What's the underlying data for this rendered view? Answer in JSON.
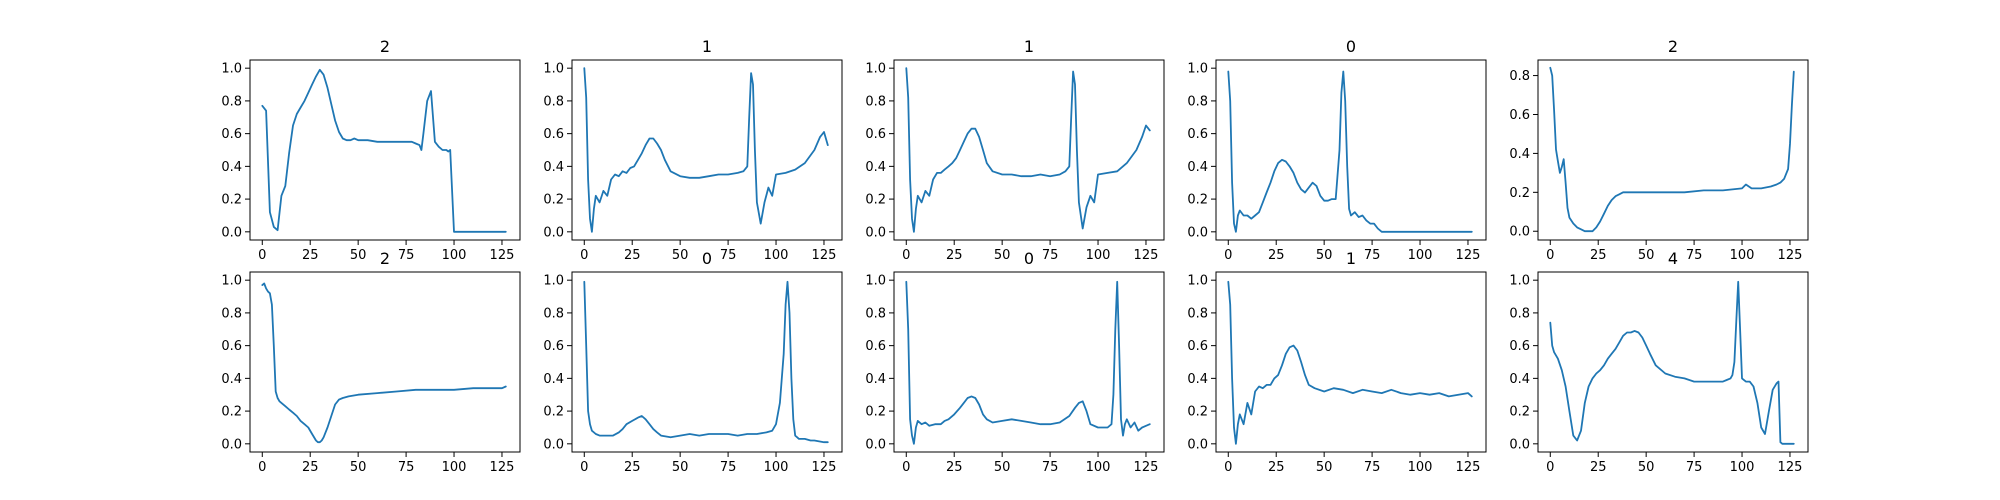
{
  "colors": {
    "series": "#1f77b4",
    "axes": "#000000",
    "background": "#ffffff"
  },
  "chart_data": [
    {
      "type": "line",
      "title": "2",
      "xlim": [
        -6.4,
        134.4
      ],
      "ylim": [
        -0.05,
        1.05
      ],
      "xticks": [
        0,
        25,
        50,
        75,
        100,
        125
      ],
      "yticks": [
        0.0,
        0.2,
        0.4,
        0.6,
        0.8,
        1.0
      ],
      "x": [
        0,
        2,
        4,
        6,
        8,
        10,
        12,
        14,
        16,
        18,
        20,
        22,
        24,
        26,
        28,
        30,
        32,
        34,
        36,
        38,
        40,
        42,
        44,
        46,
        48,
        50,
        55,
        60,
        65,
        70,
        75,
        78,
        80,
        82,
        83,
        84,
        86,
        88,
        90,
        92,
        94,
        96,
        97,
        98,
        100,
        110,
        120,
        127
      ],
      "series": [
        {
          "values": [
            0.77,
            0.74,
            0.12,
            0.03,
            0.01,
            0.22,
            0.28,
            0.48,
            0.65,
            0.72,
            0.76,
            0.8,
            0.85,
            0.9,
            0.95,
            0.99,
            0.96,
            0.88,
            0.78,
            0.68,
            0.61,
            0.57,
            0.56,
            0.56,
            0.57,
            0.56,
            0.56,
            0.55,
            0.55,
            0.55,
            0.55,
            0.55,
            0.54,
            0.53,
            0.5,
            0.6,
            0.8,
            0.86,
            0.55,
            0.52,
            0.5,
            0.5,
            0.49,
            0.5,
            0.0,
            0.0,
            0.0,
            0.0
          ]
        }
      ]
    },
    {
      "type": "line",
      "title": "1",
      "xlim": [
        -6.4,
        134.4
      ],
      "ylim": [
        -0.05,
        1.05
      ],
      "xticks": [
        0,
        25,
        50,
        75,
        100,
        125
      ],
      "yticks": [
        0.0,
        0.2,
        0.4,
        0.6,
        0.8,
        1.0
      ],
      "x": [
        0,
        1,
        2,
        3,
        4,
        5,
        6,
        8,
        10,
        12,
        14,
        16,
        18,
        20,
        22,
        24,
        26,
        28,
        30,
        32,
        34,
        36,
        38,
        40,
        42,
        45,
        50,
        55,
        60,
        65,
        70,
        75,
        80,
        83,
        85,
        86,
        87,
        88,
        89,
        90,
        92,
        94,
        96,
        98,
        100,
        105,
        110,
        115,
        120,
        123,
        125,
        127
      ],
      "series": [
        {
          "values": [
            1.0,
            0.82,
            0.32,
            0.08,
            0.0,
            0.14,
            0.22,
            0.18,
            0.25,
            0.22,
            0.32,
            0.35,
            0.34,
            0.37,
            0.36,
            0.39,
            0.4,
            0.44,
            0.48,
            0.53,
            0.57,
            0.57,
            0.54,
            0.5,
            0.44,
            0.37,
            0.34,
            0.33,
            0.33,
            0.34,
            0.35,
            0.35,
            0.36,
            0.37,
            0.4,
            0.7,
            0.97,
            0.9,
            0.5,
            0.18,
            0.05,
            0.18,
            0.27,
            0.22,
            0.35,
            0.36,
            0.38,
            0.42,
            0.5,
            0.58,
            0.61,
            0.53
          ]
        }
      ]
    },
    {
      "type": "line",
      "title": "1",
      "xlim": [
        -6.4,
        134.4
      ],
      "ylim": [
        -0.05,
        1.05
      ],
      "xticks": [
        0,
        25,
        50,
        75,
        100,
        125
      ],
      "yticks": [
        0.0,
        0.2,
        0.4,
        0.6,
        0.8,
        1.0
      ],
      "x": [
        0,
        1,
        2,
        3,
        4,
        5,
        6,
        8,
        10,
        12,
        14,
        16,
        18,
        20,
        22,
        24,
        26,
        28,
        30,
        32,
        34,
        36,
        38,
        40,
        42,
        45,
        50,
        55,
        60,
        65,
        70,
        75,
        80,
        83,
        85,
        86,
        87,
        88,
        89,
        90,
        92,
        94,
        96,
        98,
        100,
        105,
        110,
        115,
        120,
        123,
        125,
        127
      ],
      "series": [
        {
          "values": [
            1.0,
            0.82,
            0.32,
            0.08,
            0.0,
            0.14,
            0.22,
            0.18,
            0.25,
            0.22,
            0.32,
            0.36,
            0.36,
            0.38,
            0.4,
            0.42,
            0.45,
            0.5,
            0.55,
            0.6,
            0.63,
            0.63,
            0.58,
            0.5,
            0.42,
            0.37,
            0.35,
            0.35,
            0.34,
            0.34,
            0.35,
            0.34,
            0.35,
            0.37,
            0.4,
            0.7,
            0.98,
            0.9,
            0.5,
            0.18,
            0.02,
            0.15,
            0.22,
            0.18,
            0.35,
            0.36,
            0.37,
            0.42,
            0.5,
            0.58,
            0.65,
            0.62
          ]
        }
      ]
    },
    {
      "type": "line",
      "title": "0",
      "xlim": [
        -6.4,
        134.4
      ],
      "ylim": [
        -0.05,
        1.05
      ],
      "xticks": [
        0,
        25,
        50,
        75,
        100,
        125
      ],
      "yticks": [
        0.0,
        0.2,
        0.4,
        0.6,
        0.8,
        1.0
      ],
      "x": [
        0,
        1,
        2,
        3,
        4,
        5,
        6,
        8,
        10,
        12,
        14,
        16,
        18,
        20,
        22,
        24,
        26,
        28,
        30,
        32,
        34,
        36,
        38,
        40,
        42,
        44,
        46,
        48,
        50,
        52,
        54,
        56,
        58,
        59,
        60,
        61,
        62,
        63,
        64,
        66,
        68,
        70,
        72,
        74,
        76,
        78,
        80,
        100,
        127
      ],
      "series": [
        {
          "values": [
            0.98,
            0.8,
            0.3,
            0.05,
            0.0,
            0.1,
            0.13,
            0.1,
            0.1,
            0.08,
            0.1,
            0.12,
            0.18,
            0.24,
            0.3,
            0.37,
            0.42,
            0.44,
            0.43,
            0.4,
            0.36,
            0.3,
            0.26,
            0.24,
            0.27,
            0.3,
            0.28,
            0.22,
            0.19,
            0.19,
            0.2,
            0.2,
            0.5,
            0.85,
            0.98,
            0.8,
            0.4,
            0.14,
            0.1,
            0.12,
            0.09,
            0.1,
            0.07,
            0.05,
            0.05,
            0.02,
            0.0,
            0.0,
            0.0
          ]
        }
      ]
    },
    {
      "type": "line",
      "title": "2",
      "xlim": [
        -6.4,
        134.4
      ],
      "ylim": [
        -0.045,
        0.88
      ],
      "xticks": [
        0,
        25,
        50,
        75,
        100,
        125
      ],
      "yticks": [
        0.0,
        0.2,
        0.4,
        0.6,
        0.8
      ],
      "x": [
        0,
        1,
        2,
        3,
        4,
        5,
        6,
        7,
        8,
        9,
        10,
        12,
        14,
        16,
        18,
        20,
        22,
        24,
        26,
        28,
        30,
        32,
        34,
        36,
        38,
        40,
        45,
        50,
        60,
        70,
        80,
        90,
        100,
        102,
        105,
        110,
        115,
        118,
        120,
        122,
        124,
        125,
        126,
        127
      ],
      "series": [
        {
          "values": [
            0.84,
            0.8,
            0.62,
            0.42,
            0.36,
            0.3,
            0.33,
            0.37,
            0.25,
            0.12,
            0.07,
            0.04,
            0.02,
            0.01,
            0.0,
            0.0,
            0.0,
            0.02,
            0.05,
            0.09,
            0.13,
            0.16,
            0.18,
            0.19,
            0.2,
            0.2,
            0.2,
            0.2,
            0.2,
            0.2,
            0.21,
            0.21,
            0.22,
            0.24,
            0.22,
            0.22,
            0.23,
            0.24,
            0.25,
            0.27,
            0.32,
            0.45,
            0.65,
            0.82
          ]
        }
      ]
    },
    {
      "type": "line",
      "title": "2",
      "xlim": [
        -6.4,
        134.4
      ],
      "ylim": [
        -0.05,
        1.05
      ],
      "xticks": [
        0,
        25,
        50,
        75,
        100,
        125
      ],
      "yticks": [
        0.0,
        0.2,
        0.4,
        0.6,
        0.8,
        1.0
      ],
      "x": [
        0,
        1,
        2,
        3,
        4,
        5,
        6,
        7,
        8,
        9,
        10,
        12,
        14,
        16,
        18,
        20,
        22,
        24,
        26,
        28,
        29,
        30,
        31,
        32,
        34,
        36,
        38,
        40,
        42,
        45,
        50,
        60,
        70,
        80,
        90,
        100,
        110,
        120,
        125,
        127
      ],
      "series": [
        {
          "values": [
            0.97,
            0.98,
            0.95,
            0.93,
            0.92,
            0.85,
            0.6,
            0.32,
            0.28,
            0.26,
            0.25,
            0.23,
            0.21,
            0.19,
            0.17,
            0.14,
            0.12,
            0.1,
            0.06,
            0.02,
            0.01,
            0.01,
            0.02,
            0.04,
            0.1,
            0.17,
            0.24,
            0.27,
            0.28,
            0.29,
            0.3,
            0.31,
            0.32,
            0.33,
            0.33,
            0.33,
            0.34,
            0.34,
            0.34,
            0.35
          ]
        }
      ]
    },
    {
      "type": "line",
      "title": "0",
      "xlim": [
        -6.4,
        134.4
      ],
      "ylim": [
        -0.05,
        1.05
      ],
      "xticks": [
        0,
        25,
        50,
        75,
        100,
        125
      ],
      "yticks": [
        0.0,
        0.2,
        0.4,
        0.6,
        0.8,
        1.0
      ],
      "x": [
        0,
        1,
        2,
        3,
        4,
        6,
        8,
        10,
        12,
        15,
        18,
        20,
        22,
        25,
        28,
        30,
        32,
        34,
        36,
        38,
        40,
        45,
        50,
        55,
        60,
        65,
        70,
        75,
        80,
        85,
        90,
        95,
        98,
        100,
        102,
        104,
        105,
        106,
        107,
        108,
        109,
        110,
        112,
        115,
        118,
        120,
        125,
        127
      ],
      "series": [
        {
          "values": [
            0.99,
            0.6,
            0.2,
            0.12,
            0.08,
            0.06,
            0.05,
            0.05,
            0.05,
            0.05,
            0.07,
            0.09,
            0.12,
            0.14,
            0.16,
            0.17,
            0.15,
            0.12,
            0.09,
            0.07,
            0.05,
            0.04,
            0.05,
            0.06,
            0.05,
            0.06,
            0.06,
            0.06,
            0.05,
            0.06,
            0.06,
            0.07,
            0.08,
            0.12,
            0.25,
            0.55,
            0.85,
            0.99,
            0.8,
            0.4,
            0.15,
            0.05,
            0.03,
            0.03,
            0.02,
            0.02,
            0.01,
            0.01
          ]
        }
      ]
    },
    {
      "type": "line",
      "title": "0",
      "xlim": [
        -6.4,
        134.4
      ],
      "ylim": [
        -0.05,
        1.05
      ],
      "xticks": [
        0,
        25,
        50,
        75,
        100,
        125
      ],
      "yticks": [
        0.0,
        0.2,
        0.4,
        0.6,
        0.8,
        1.0
      ],
      "x": [
        0,
        1,
        2,
        3,
        4,
        5,
        6,
        8,
        10,
        12,
        15,
        18,
        20,
        22,
        25,
        28,
        30,
        32,
        34,
        36,
        38,
        40,
        42,
        45,
        50,
        55,
        60,
        65,
        70,
        75,
        80,
        85,
        88,
        90,
        92,
        94,
        96,
        100,
        105,
        107,
        108,
        109,
        110,
        111,
        112,
        113,
        114,
        115,
        117,
        119,
        121,
        123,
        125,
        127
      ],
      "series": [
        {
          "values": [
            0.99,
            0.7,
            0.15,
            0.05,
            0.0,
            0.1,
            0.14,
            0.12,
            0.13,
            0.11,
            0.12,
            0.12,
            0.14,
            0.15,
            0.18,
            0.22,
            0.25,
            0.28,
            0.29,
            0.28,
            0.24,
            0.18,
            0.15,
            0.13,
            0.14,
            0.15,
            0.14,
            0.13,
            0.12,
            0.12,
            0.13,
            0.17,
            0.22,
            0.25,
            0.26,
            0.2,
            0.12,
            0.1,
            0.1,
            0.12,
            0.3,
            0.7,
            0.99,
            0.6,
            0.15,
            0.05,
            0.12,
            0.15,
            0.1,
            0.13,
            0.08,
            0.1,
            0.11,
            0.12
          ]
        }
      ]
    },
    {
      "type": "line",
      "title": "1",
      "xlim": [
        -6.4,
        134.4
      ],
      "ylim": [
        -0.05,
        1.05
      ],
      "xticks": [
        0,
        25,
        50,
        75,
        100,
        125
      ],
      "yticks": [
        0.0,
        0.2,
        0.4,
        0.6,
        0.8,
        1.0
      ],
      "x": [
        0,
        1,
        2,
        3,
        4,
        5,
        6,
        8,
        10,
        12,
        14,
        16,
        18,
        20,
        22,
        24,
        26,
        28,
        30,
        32,
        34,
        36,
        38,
        40,
        42,
        45,
        50,
        55,
        60,
        65,
        70,
        75,
        80,
        85,
        90,
        95,
        100,
        105,
        110,
        115,
        120,
        125,
        127
      ],
      "series": [
        {
          "values": [
            0.99,
            0.85,
            0.4,
            0.1,
            0.0,
            0.12,
            0.18,
            0.12,
            0.25,
            0.18,
            0.32,
            0.35,
            0.34,
            0.36,
            0.36,
            0.4,
            0.42,
            0.48,
            0.55,
            0.59,
            0.6,
            0.57,
            0.5,
            0.42,
            0.36,
            0.34,
            0.32,
            0.34,
            0.33,
            0.31,
            0.33,
            0.32,
            0.31,
            0.33,
            0.31,
            0.3,
            0.31,
            0.3,
            0.31,
            0.29,
            0.3,
            0.31,
            0.29
          ]
        }
      ]
    },
    {
      "type": "line",
      "title": "4",
      "xlim": [
        -6.4,
        134.4
      ],
      "ylim": [
        -0.05,
        1.05
      ],
      "xticks": [
        0,
        25,
        50,
        75,
        100,
        125
      ],
      "yticks": [
        0.0,
        0.2,
        0.4,
        0.6,
        0.8,
        1.0
      ],
      "x": [
        0,
        1,
        2,
        4,
        6,
        8,
        10,
        12,
        14,
        16,
        18,
        20,
        22,
        24,
        26,
        28,
        30,
        32,
        34,
        36,
        38,
        40,
        42,
        44,
        46,
        48,
        50,
        52,
        55,
        60,
        65,
        70,
        75,
        80,
        85,
        90,
        92,
        94,
        95,
        96,
        97,
        98,
        99,
        100,
        102,
        104,
        106,
        108,
        110,
        112,
        114,
        116,
        118,
        119,
        120,
        121,
        125,
        127
      ],
      "series": [
        {
          "values": [
            0.74,
            0.6,
            0.56,
            0.52,
            0.45,
            0.35,
            0.2,
            0.05,
            0.02,
            0.08,
            0.25,
            0.35,
            0.4,
            0.43,
            0.45,
            0.48,
            0.52,
            0.55,
            0.58,
            0.62,
            0.66,
            0.68,
            0.68,
            0.69,
            0.68,
            0.65,
            0.6,
            0.55,
            0.48,
            0.43,
            0.41,
            0.4,
            0.38,
            0.38,
            0.38,
            0.38,
            0.39,
            0.4,
            0.42,
            0.5,
            0.75,
            0.99,
            0.7,
            0.4,
            0.38,
            0.38,
            0.35,
            0.25,
            0.1,
            0.06,
            0.2,
            0.33,
            0.37,
            0.38,
            0.01,
            0.0,
            0.0,
            0.0
          ]
        }
      ]
    }
  ]
}
